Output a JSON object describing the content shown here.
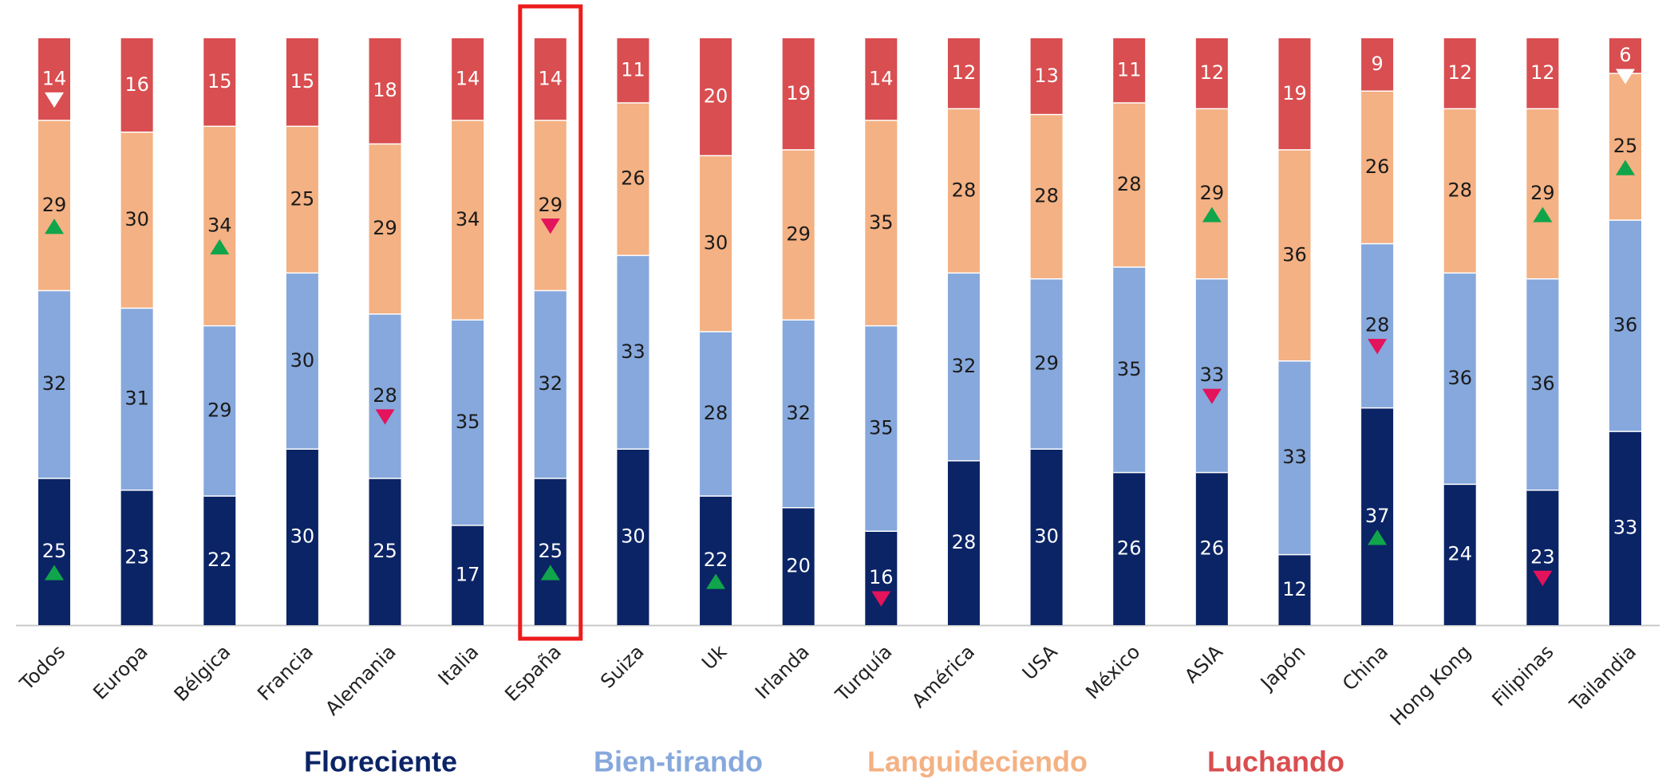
{
  "chart_data": {
    "type": "stacked_bar",
    "categories": [
      "Todos",
      "Europa",
      "Bélgica",
      "Francia",
      "Alemania",
      "Italia",
      "España",
      "Suiza",
      "Uk",
      "Irlanda",
      "Turquía",
      "América",
      "USA",
      "México",
      "ASIA",
      "Japón",
      "China",
      "Hong Kong",
      "Filipinas",
      "Tailandia"
    ],
    "series": [
      {
        "name": "Floreciente",
        "color": "#0b2466",
        "label_color": "#ffffff",
        "values": [
          25,
          23,
          22,
          30,
          25,
          17,
          25,
          30,
          22,
          20,
          16,
          28,
          30,
          26,
          26,
          12,
          37,
          24,
          23,
          33
        ],
        "trend": [
          "up",
          null,
          null,
          null,
          null,
          null,
          "up",
          null,
          "up",
          null,
          "down",
          null,
          null,
          null,
          null,
          null,
          "up",
          null,
          "down",
          null
        ]
      },
      {
        "name": "Bien-tirando",
        "color": "#86a8dc",
        "label_color": "#1a1a1a",
        "values": [
          32,
          31,
          29,
          30,
          28,
          35,
          32,
          33,
          28,
          32,
          35,
          32,
          29,
          35,
          33,
          33,
          28,
          36,
          36,
          36
        ],
        "trend": [
          null,
          null,
          null,
          null,
          "down",
          null,
          null,
          null,
          null,
          null,
          null,
          null,
          null,
          null,
          "down",
          null,
          "down",
          null,
          null,
          null
        ]
      },
      {
        "name": "Languideciendo",
        "color": "#f4b183",
        "label_color": "#1a1a1a",
        "values": [
          29,
          30,
          34,
          25,
          29,
          34,
          29,
          26,
          30,
          29,
          35,
          28,
          28,
          28,
          29,
          36,
          26,
          28,
          29,
          25
        ],
        "trend": [
          "up",
          null,
          "up",
          null,
          null,
          null,
          "down",
          null,
          null,
          null,
          null,
          null,
          null,
          null,
          "up",
          null,
          null,
          null,
          "up",
          "up"
        ]
      },
      {
        "name": "Luchando",
        "color": "#d94e50",
        "label_color": "#ffffff",
        "trend_down_color": "#ffffff",
        "values": [
          14,
          16,
          15,
          15,
          18,
          14,
          14,
          11,
          20,
          19,
          14,
          12,
          13,
          11,
          12,
          19,
          9,
          12,
          12,
          6
        ],
        "trend": [
          "down",
          null,
          null,
          null,
          null,
          null,
          null,
          null,
          null,
          null,
          null,
          null,
          null,
          null,
          null,
          null,
          null,
          null,
          null,
          "down"
        ]
      }
    ],
    "trend_colors": {
      "up": "#10a54a",
      "down": "#e3135c"
    },
    "highlight": "España",
    "highlight_color": "#ee1c1c"
  }
}
